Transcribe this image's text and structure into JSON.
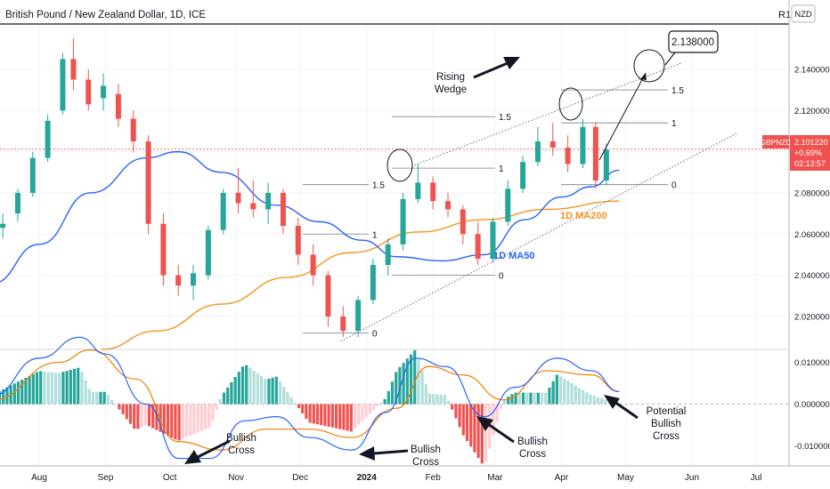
{
  "header": {
    "title": "British Pound / New Zealand Dollar, 1D, ICE",
    "corner_label": "R1",
    "currency": "NZD"
  },
  "price_tag": {
    "symbol": "GBPNZD",
    "price": "2.101220",
    "change": "+0.69%",
    "countdown": "02:13:57"
  },
  "colors": {
    "up": "#26a69a",
    "down": "#ef5350",
    "ma50": "#2962ff",
    "ma200": "#f7931a",
    "macd_line": "#2962ff",
    "signal_line": "#f57c00",
    "hist_up_strong": "#26a69a",
    "hist_up_weak": "#b2dfdb",
    "hist_down_strong": "#ef5350",
    "hist_down_weak": "#ffcdd2"
  },
  "chart_data": [
    {
      "type": "candlestick",
      "title": "British Pound / New Zealand Dollar, 1D, ICE",
      "x_ticks": [
        "Aug",
        "Sep",
        "Oct",
        "Nov",
        "Dec",
        "2024",
        "Feb",
        "Mar",
        "Apr",
        "May",
        "Jun",
        "Jul"
      ],
      "y_ticks": [
        "2.140000",
        "2.120000",
        "2.100000",
        "2.080000",
        "2.060000",
        "2.040000",
        "2.020000"
      ],
      "ylim": [
        2.004,
        2.162
      ],
      "last_price": 2.10122,
      "ohlc": [
        {
          "d": "2023-07-15",
          "o": 2.063,
          "h": 2.07,
          "l": 2.058,
          "c": 2.065
        },
        {
          "d": "2023-07-22",
          "o": 2.07,
          "h": 2.082,
          "l": 2.066,
          "c": 2.08
        },
        {
          "d": "2023-07-29",
          "o": 2.08,
          "h": 2.1,
          "l": 2.078,
          "c": 2.097
        },
        {
          "d": "2023-08-05",
          "o": 2.097,
          "h": 2.118,
          "l": 2.095,
          "c": 2.115
        },
        {
          "d": "2023-08-12",
          "o": 2.12,
          "h": 2.148,
          "l": 2.118,
          "c": 2.145
        },
        {
          "d": "2023-08-17",
          "o": 2.145,
          "h": 2.155,
          "l": 2.13,
          "c": 2.135
        },
        {
          "d": "2023-08-24",
          "o": 2.135,
          "h": 2.14,
          "l": 2.12,
          "c": 2.123
        },
        {
          "d": "2023-08-31",
          "o": 2.126,
          "h": 2.138,
          "l": 2.12,
          "c": 2.132
        },
        {
          "d": "2023-09-07",
          "o": 2.128,
          "h": 2.133,
          "l": 2.112,
          "c": 2.116
        },
        {
          "d": "2023-09-14",
          "o": 2.116,
          "h": 2.12,
          "l": 2.1,
          "c": 2.105
        },
        {
          "d": "2023-09-21",
          "o": 2.105,
          "h": 2.108,
          "l": 2.06,
          "c": 2.065
        },
        {
          "d": "2023-09-28",
          "o": 2.065,
          "h": 2.07,
          "l": 2.035,
          "c": 2.04
        },
        {
          "d": "2023-10-05",
          "o": 2.04,
          "h": 2.045,
          "l": 2.03,
          "c": 2.035
        },
        {
          "d": "2023-10-12",
          "o": 2.035,
          "h": 2.045,
          "l": 2.028,
          "c": 2.041
        },
        {
          "d": "2023-10-19",
          "o": 2.04,
          "h": 2.064,
          "l": 2.038,
          "c": 2.062
        },
        {
          "d": "2023-10-26",
          "o": 2.062,
          "h": 2.082,
          "l": 2.06,
          "c": 2.08
        },
        {
          "d": "2023-11-02",
          "o": 2.08,
          "h": 2.092,
          "l": 2.07,
          "c": 2.075
        },
        {
          "d": "2023-11-09",
          "o": 2.075,
          "h": 2.086,
          "l": 2.068,
          "c": 2.072
        },
        {
          "d": "2023-11-16",
          "o": 2.072,
          "h": 2.085,
          "l": 2.065,
          "c": 2.08
        },
        {
          "d": "2023-11-23",
          "o": 2.08,
          "h": 2.082,
          "l": 2.06,
          "c": 2.064
        },
        {
          "d": "2023-11-30",
          "o": 2.064,
          "h": 2.068,
          "l": 2.045,
          "c": 2.05
        },
        {
          "d": "2023-12-07",
          "o": 2.05,
          "h": 2.055,
          "l": 2.035,
          "c": 2.04
        },
        {
          "d": "2023-12-14",
          "o": 2.04,
          "h": 2.042,
          "l": 2.015,
          "c": 2.02
        },
        {
          "d": "2023-12-21",
          "o": 2.02,
          "h": 2.025,
          "l": 2.01,
          "c": 2.013
        },
        {
          "d": "2023-12-28",
          "o": 2.013,
          "h": 2.03,
          "l": 2.01,
          "c": 2.028
        },
        {
          "d": "2024-01-04",
          "o": 2.028,
          "h": 2.048,
          "l": 2.026,
          "c": 2.045
        },
        {
          "d": "2024-01-11",
          "o": 2.045,
          "h": 2.058,
          "l": 2.04,
          "c": 2.055
        },
        {
          "d": "2024-01-18",
          "o": 2.055,
          "h": 2.08,
          "l": 2.052,
          "c": 2.077
        },
        {
          "d": "2024-01-25",
          "o": 2.077,
          "h": 2.094,
          "l": 2.075,
          "c": 2.085
        },
        {
          "d": "2024-02-01",
          "o": 2.085,
          "h": 2.088,
          "l": 2.072,
          "c": 2.076
        },
        {
          "d": "2024-02-08",
          "o": 2.076,
          "h": 2.08,
          "l": 2.068,
          "c": 2.072
        },
        {
          "d": "2024-02-15",
          "o": 2.072,
          "h": 2.074,
          "l": 2.055,
          "c": 2.06
        },
        {
          "d": "2024-02-22",
          "o": 2.06,
          "h": 2.066,
          "l": 2.045,
          "c": 2.048
        },
        {
          "d": "2024-02-29",
          "o": 2.048,
          "h": 2.068,
          "l": 2.046,
          "c": 2.066
        },
        {
          "d": "2024-03-07",
          "o": 2.066,
          "h": 2.086,
          "l": 2.064,
          "c": 2.082
        },
        {
          "d": "2024-03-14",
          "o": 2.082,
          "h": 2.098,
          "l": 2.08,
          "c": 2.095
        },
        {
          "d": "2024-03-21",
          "o": 2.095,
          "h": 2.112,
          "l": 2.093,
          "c": 2.105
        },
        {
          "d": "2024-03-28",
          "o": 2.105,
          "h": 2.114,
          "l": 2.098,
          "c": 2.102
        },
        {
          "d": "2024-04-04",
          "o": 2.102,
          "h": 2.108,
          "l": 2.09,
          "c": 2.094
        },
        {
          "d": "2024-04-11",
          "o": 2.094,
          "h": 2.116,
          "l": 2.092,
          "c": 2.112
        },
        {
          "d": "2024-04-17",
          "o": 2.112,
          "h": 2.114,
          "l": 2.082,
          "c": 2.086
        },
        {
          "d": "2024-04-22",
          "o": 2.086,
          "h": 2.104,
          "l": 2.084,
          "c": 2.101
        }
      ],
      "moving_averages": [
        {
          "name": "1D MA50",
          "points": [
            [
              "2023-07-10",
              2.036
            ],
            [
              "2023-08-01",
              2.055
            ],
            [
              "2023-08-25",
              2.08
            ],
            [
              "2023-09-20",
              2.097
            ],
            [
              "2023-10-05",
              2.1
            ],
            [
              "2023-10-25",
              2.09
            ],
            [
              "2023-11-20",
              2.074
            ],
            [
              "2023-12-10",
              2.066
            ],
            [
              "2023-12-30",
              2.057
            ],
            [
              "2024-01-15",
              2.049
            ],
            [
              "2024-02-05",
              2.047
            ],
            [
              "2024-02-25",
              2.05
            ],
            [
              "2024-03-15",
              2.067
            ],
            [
              "2024-04-01",
              2.078
            ],
            [
              "2024-04-15",
              2.083
            ],
            [
              "2024-04-28",
              2.091
            ]
          ]
        },
        {
          "name": "1D MA200",
          "points": [
            [
              "2023-08-30",
              2.004
            ],
            [
              "2023-09-25",
              2.013
            ],
            [
              "2023-10-25",
              2.026
            ],
            [
              "2023-11-25",
              2.039
            ],
            [
              "2023-12-25",
              2.051
            ],
            [
              "2024-01-25",
              2.061
            ],
            [
              "2024-02-25",
              2.067
            ],
            [
              "2024-03-25",
              2.072
            ],
            [
              "2024-04-28",
              2.076
            ]
          ]
        }
      ],
      "wedge": {
        "label": "Rising Wedge",
        "upper": [
          [
            "2024-01-22",
            2.093
          ],
          [
            "2024-05-27",
            2.143
          ]
        ],
        "lower": [
          [
            "2023-12-20",
            2.008
          ],
          [
            "2024-06-22",
            2.109
          ]
        ]
      },
      "fib_levels": [
        {
          "label": "0",
          "price": 2.012
        },
        {
          "label": "1",
          "price": 2.06
        },
        {
          "label": "1.5",
          "price": 2.084
        },
        {
          "label": "0",
          "price": 2.04
        },
        {
          "label": "1",
          "price": 2.092
        },
        {
          "label": "1.5",
          "price": 2.117
        },
        {
          "label": "0",
          "price": 2.084
        },
        {
          "label": "1",
          "price": 2.114
        },
        {
          "label": "1.5",
          "price": 2.13
        }
      ],
      "target_callout": "2.138000",
      "annotations": [
        "Rising",
        "Wedge",
        "1D MA200",
        "1D MA50"
      ]
    },
    {
      "type": "macd",
      "y_ticks": [
        "0.010000",
        "0.000000",
        "-0.010000"
      ],
      "ylim": [
        -0.0148,
        0.0131
      ],
      "macd": [
        [
          "2023-07-10",
          0.002
        ],
        [
          "2023-08-01",
          0.011
        ],
        [
          "2023-08-20",
          0.016
        ],
        [
          "2023-09-01",
          0.012
        ],
        [
          "2023-09-20",
          0.0
        ],
        [
          "2023-10-05",
          -0.013
        ],
        [
          "2023-10-20",
          -0.013
        ],
        [
          "2023-11-05",
          -0.004
        ],
        [
          "2023-11-20",
          -0.003
        ],
        [
          "2023-12-05",
          -0.008
        ],
        [
          "2023-12-25",
          -0.011
        ],
        [
          "2024-01-10",
          -0.002
        ],
        [
          "2024-01-24",
          0.011
        ],
        [
          "2024-02-07",
          0.009
        ],
        [
          "2024-02-25",
          -0.003
        ],
        [
          "2024-03-10",
          0.004
        ],
        [
          "2024-03-30",
          0.011
        ],
        [
          "2024-04-15",
          0.008
        ],
        [
          "2024-04-28",
          0.003
        ]
      ],
      "signal": [
        [
          "2023-07-10",
          0.001
        ],
        [
          "2023-08-10",
          0.01
        ],
        [
          "2023-08-25",
          0.013
        ],
        [
          "2023-09-15",
          0.006
        ],
        [
          "2023-10-05",
          -0.009
        ],
        [
          "2023-10-25",
          -0.011
        ],
        [
          "2023-11-15",
          -0.006
        ],
        [
          "2023-12-05",
          -0.006
        ],
        [
          "2023-12-25",
          -0.008
        ],
        [
          "2024-01-15",
          -0.001
        ],
        [
          "2024-01-30",
          0.009
        ],
        [
          "2024-02-15",
          0.007
        ],
        [
          "2024-03-05",
          0.001
        ],
        [
          "2024-03-25",
          0.008
        ],
        [
          "2024-04-15",
          0.007
        ],
        [
          "2024-04-28",
          0.003
        ]
      ],
      "annotations": [
        {
          "text": [
            "Bullish",
            "Cross"
          ]
        },
        {
          "text": [
            "Bullish",
            "Cross"
          ]
        },
        {
          "text": [
            "Bullish",
            "Cross"
          ]
        },
        {
          "text": [
            "Potential",
            "Bullish",
            "Cross"
          ]
        }
      ]
    }
  ]
}
